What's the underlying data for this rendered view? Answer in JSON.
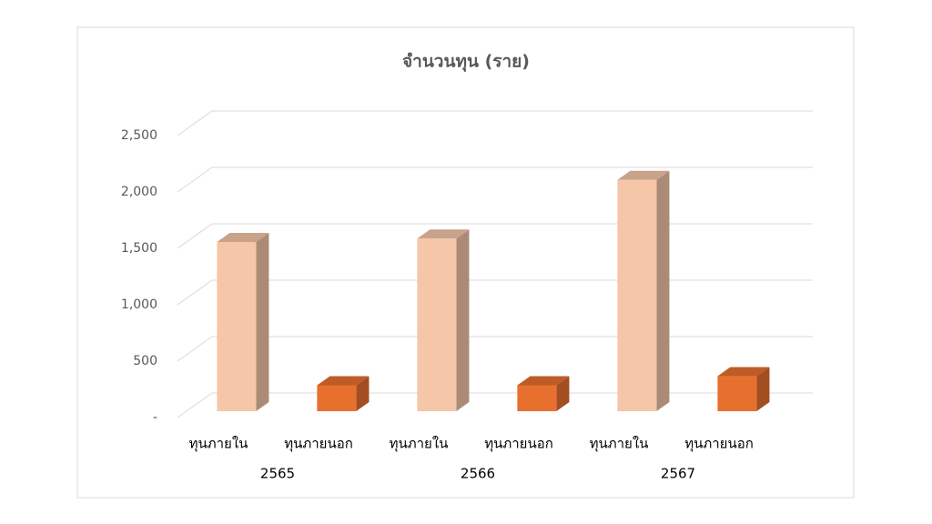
{
  "chart_data": {
    "type": "bar3d",
    "title": "จำนวนทุน (ราย)",
    "categories": [
      "2565",
      "2566",
      "2567"
    ],
    "series": [
      {
        "name": "ทุนภายใน",
        "color": "#f5c6a8",
        "values": [
          1500,
          1530,
          2050
        ]
      },
      {
        "name": "ทุนภายนอก",
        "color": "#e8702f",
        "values": [
          230,
          230,
          310
        ]
      }
    ],
    "ylim": [
      0,
      2500
    ],
    "yticks": [
      {
        "value": 0,
        "label": "-"
      },
      500,
      {
        "value": 1000,
        "label": "1,000"
      },
      {
        "value": 1500,
        "label": "1,500"
      },
      {
        "value": 2000,
        "label": "2,000"
      },
      {
        "value": 2500,
        "label": "2,500"
      }
    ],
    "grid": true,
    "legend": false
  }
}
